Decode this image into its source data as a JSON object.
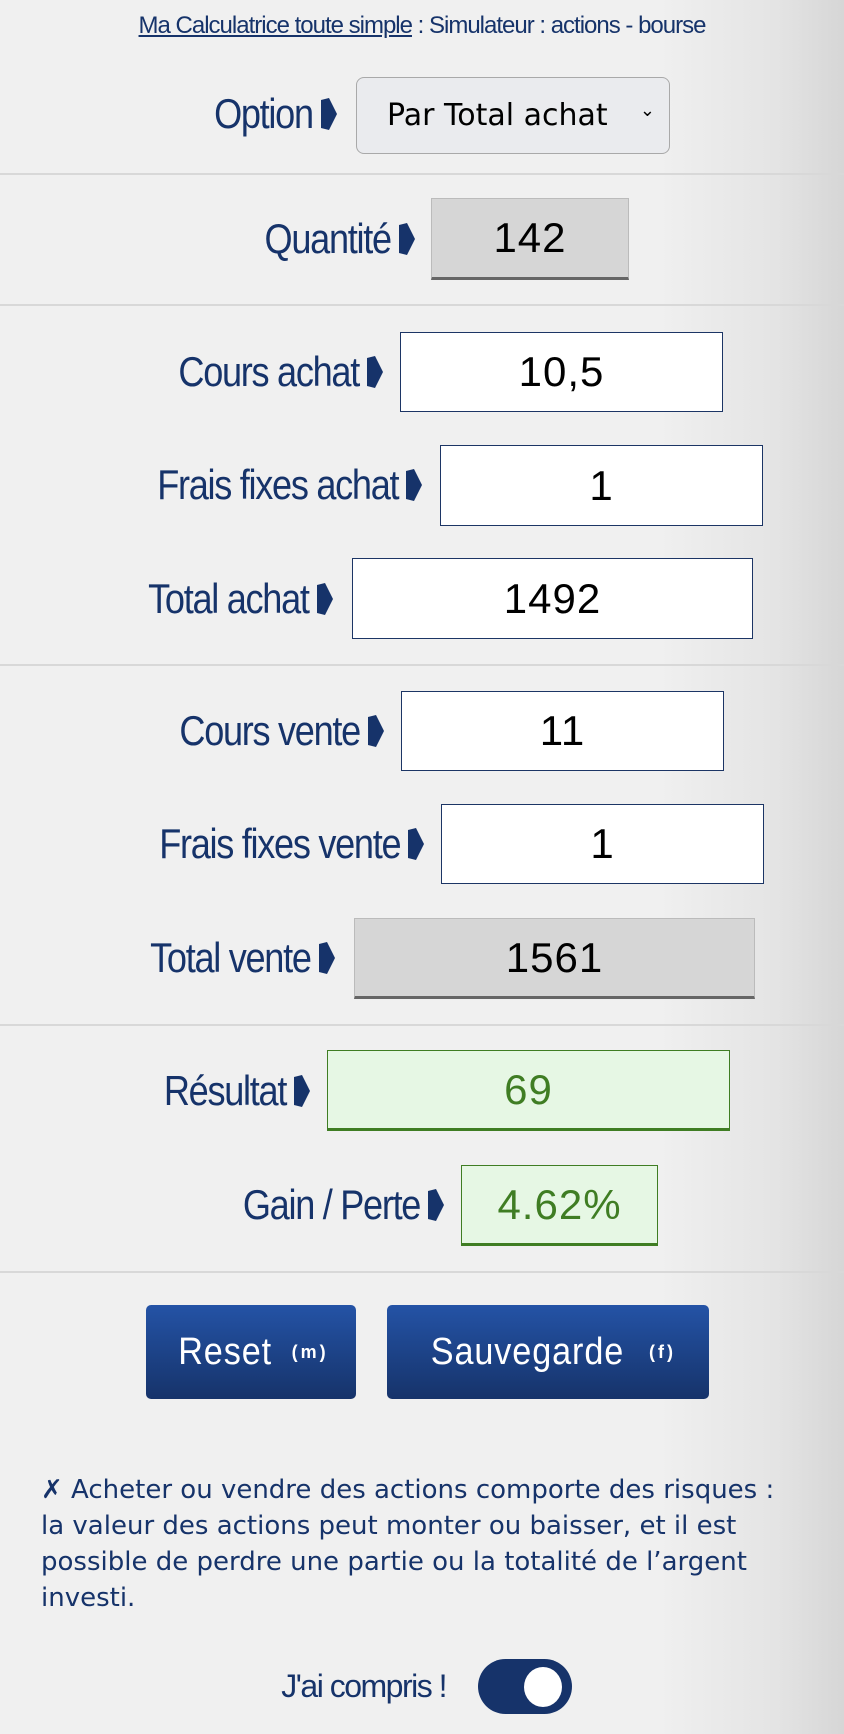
{
  "header": {
    "link": "Ma Calculatrice toute simple",
    "rest": " : Simulateur : actions - bourse"
  },
  "option": {
    "label": "Option",
    "selected": "Par Total achat"
  },
  "fields": {
    "quantite": {
      "label": "Quantité",
      "value": "142"
    },
    "cours_achat": {
      "label": "Cours achat",
      "value": "10,5"
    },
    "frais_achat": {
      "label": "Frais fixes achat",
      "value": "1"
    },
    "total_achat": {
      "label": "Total achat",
      "value": "1492"
    },
    "cours_vente": {
      "label": "Cours vente",
      "value": "11"
    },
    "frais_vente": {
      "label": "Frais fixes vente",
      "value": "1"
    },
    "total_vente": {
      "label": "Total vente",
      "value": "1561"
    },
    "resultat": {
      "label": "Résultat",
      "value": "69"
    },
    "gain": {
      "label": "Gain / Perte",
      "value": "4.62%"
    }
  },
  "buttons": {
    "reset": "Reset",
    "reset_key": "(m)",
    "save": "Sauvegarde",
    "save_key": "(f)"
  },
  "disclaimer": "✗ Acheter ou vendre des actions comporte des risques : la valeur des actions peut monter ou baisser, et il est possible de perdre une partie ou la totalité de l’argent investi.",
  "consent": {
    "label": "J'ai compris !",
    "checked": true
  },
  "colors": {
    "navy": "#16336a",
    "positive": "#3f7d23",
    "positive_bg": "#e6f7e4"
  }
}
